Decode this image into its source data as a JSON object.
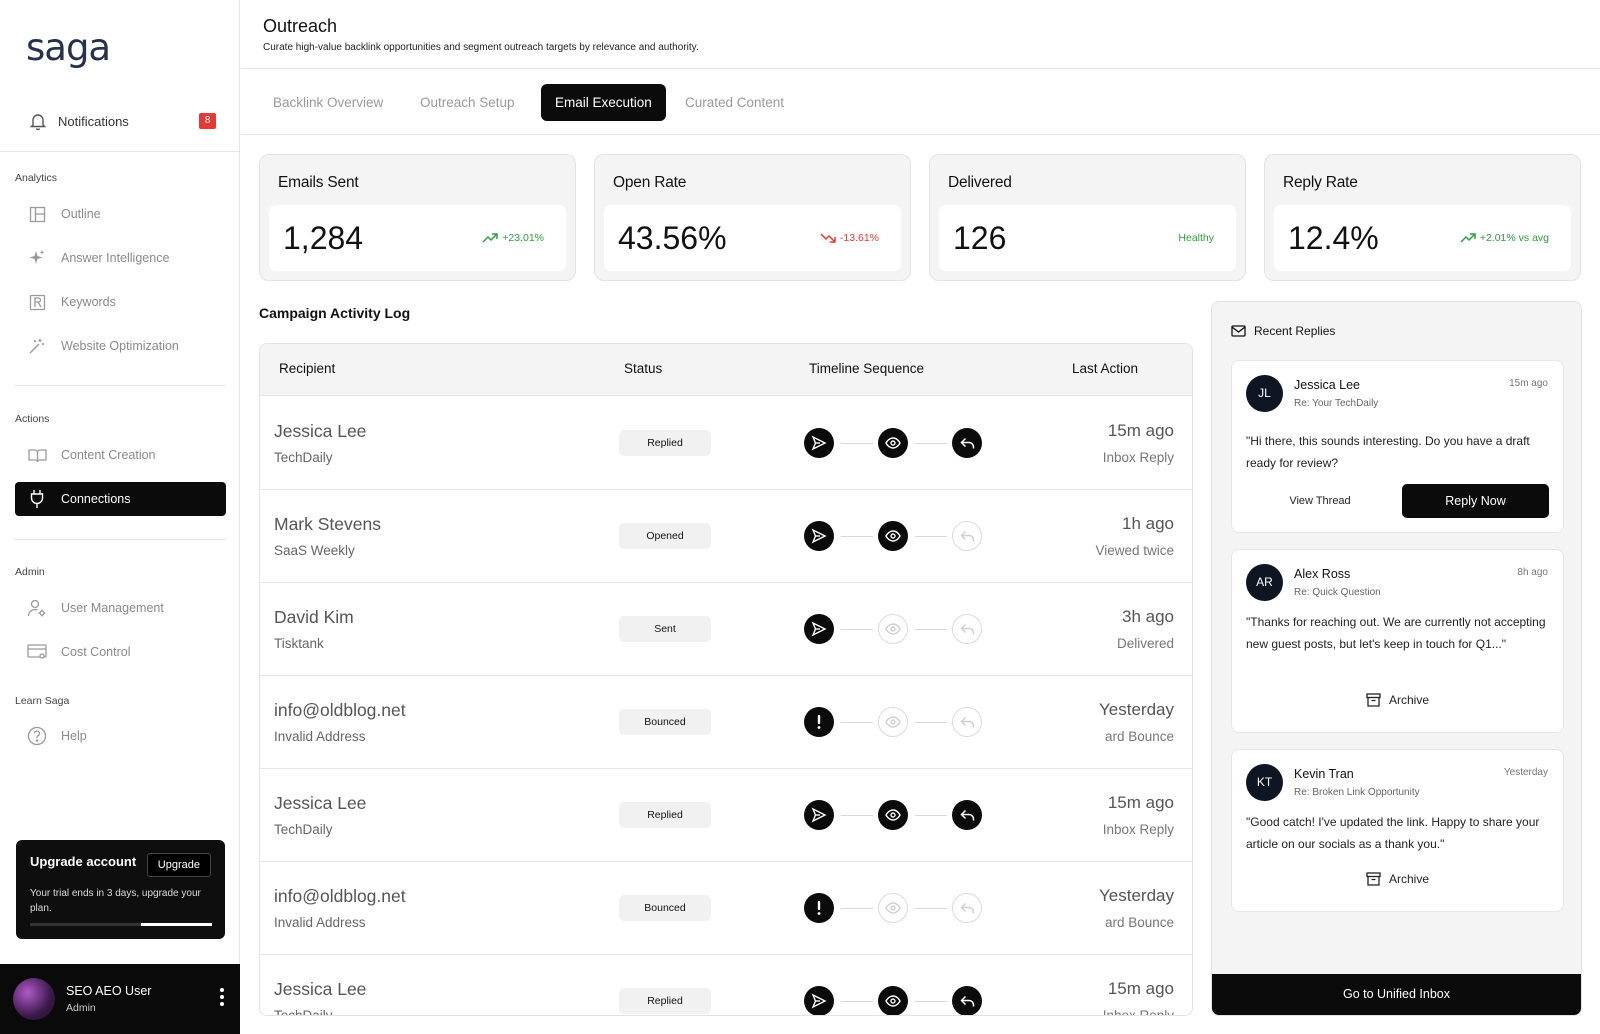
{
  "brand": {
    "logo": "saga"
  },
  "sidebar": {
    "notifications": {
      "label": "Notifications",
      "count": "8"
    },
    "sections": {
      "analytics": "Analytics",
      "actions": "Actions",
      "admin": "Admin",
      "learn": "Learn Saga"
    },
    "items": {
      "outline": "Outline",
      "answer_intelligence": "Answer Intelligence",
      "keywords": "Keywords",
      "website_optimization": "Website Optimization",
      "content_creation": "Content Creation",
      "connections": "Connections",
      "user_management": "User Management",
      "cost_control": "Cost Control",
      "help": "Help"
    },
    "upgrade": {
      "title": "Upgrade account",
      "button": "Upgrade",
      "desc": "Your trial ends in 3 days, upgrade your plan.",
      "progress_remaining_fraction": 0.39
    },
    "user": {
      "name": "SEO AEO User",
      "role": "Admin"
    }
  },
  "header": {
    "title": "Outreach",
    "subtitle": "Curate high-value backlink opportunities and segment outreach targets by relevance and authority."
  },
  "tabs": [
    {
      "label": "Backlink Overview",
      "active": false
    },
    {
      "label": "Outreach Setup",
      "active": false
    },
    {
      "label": "Email Execution",
      "active": true
    },
    {
      "label": "Curated Content",
      "active": false
    }
  ],
  "stats": [
    {
      "label": "Emails Sent",
      "value": "1,284",
      "change": "+23.01%",
      "trend": "up"
    },
    {
      "label": "Open Rate",
      "value": "43.56%",
      "change": "-13.61%",
      "trend": "down"
    },
    {
      "label": "Delivered",
      "value": "126",
      "change": "Healthy",
      "trend": "none"
    },
    {
      "label": "Reply Rate",
      "value": "12.4%",
      "change": "+2.01%  vs avg",
      "trend": "up"
    }
  ],
  "activity": {
    "title": "Campaign Activity Log",
    "columns": {
      "recipient": "Recipient",
      "status": "Status",
      "timeline": "Timeline Sequence",
      "last_action": "Last Action"
    },
    "rows": [
      {
        "name": "Jessica Lee",
        "outlet": "TechDaily",
        "status": "Replied",
        "steps": [
          "sent",
          "opened",
          "replied"
        ],
        "time": "15m ago",
        "detail": "Inbox Reply"
      },
      {
        "name": "Mark Stevens",
        "outlet": "SaaS Weekly",
        "status": "Opened",
        "steps": [
          "sent",
          "opened",
          "none"
        ],
        "time": "1h ago",
        "detail": "Viewed twice"
      },
      {
        "name": "David Kim",
        "outlet": "Tisktank",
        "status": "Sent",
        "steps": [
          "sent",
          "none",
          "none"
        ],
        "time": "3h ago",
        "detail": "Delivered"
      },
      {
        "name": "info@oldblog.net",
        "outlet": "Invalid Address",
        "status": "Bounced",
        "steps": [
          "error",
          "none",
          "none"
        ],
        "time": "Yesterday",
        "detail": "ard Bounce"
      },
      {
        "name": "Jessica Lee",
        "outlet": "TechDaily",
        "status": "Replied",
        "steps": [
          "sent",
          "opened",
          "replied"
        ],
        "time": "15m ago",
        "detail": "Inbox Reply"
      },
      {
        "name": "info@oldblog.net",
        "outlet": "Invalid Address",
        "status": "Bounced",
        "steps": [
          "error",
          "none",
          "none"
        ],
        "time": "Yesterday",
        "detail": "ard Bounce"
      },
      {
        "name": "Jessica Lee",
        "outlet": "TechDaily",
        "status": "Replied",
        "steps": [
          "sent",
          "opened",
          "replied"
        ],
        "time": "15m ago",
        "detail": "Inbox Reply"
      }
    ]
  },
  "replies": {
    "title": "Recent Replies",
    "items": [
      {
        "initials": "JL",
        "name": "Jessica Lee",
        "subject": "Re: Your TechDaily",
        "time": "15m ago",
        "message": "\"Hi there, this sounds interesting. Do you have a draft ready for review?",
        "view": "View Thread",
        "reply": "Reply Now"
      },
      {
        "initials": "AR",
        "name": "Alex Ross",
        "subject": "Re: Quick Question",
        "time": "8h ago",
        "message": "\"Thanks for reaching out. We are currently not accepting new guest posts, but let's keep in touch for Q1...\"",
        "archive": "Archive"
      },
      {
        "initials": "KT",
        "name": "Kevin Tran",
        "subject": "Re: Broken Link Opportunity",
        "time": "Yesterday",
        "message": "\"Good catch! I've updated the link. Happy to share your article on our socials as a thank you.\"",
        "archive": "Archive"
      }
    ],
    "unified": "Go to Unified Inbox"
  },
  "colors": {
    "accent": "#0b0b0b",
    "positive": "#2e9e3e",
    "negative": "#e53935",
    "badge": "#e53935"
  }
}
